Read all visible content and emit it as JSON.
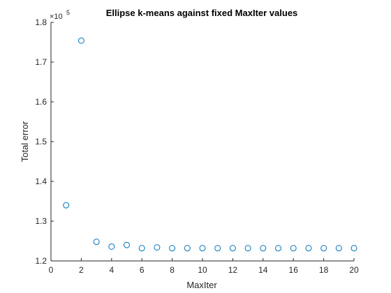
{
  "chart_data": {
    "type": "scatter",
    "title": "Ellipse k-means against fixed MaxIter values",
    "xlabel": "MaxIter",
    "ylabel": "Total error",
    "y_multiplier_label": "×10",
    "y_multiplier_exponent": "5",
    "xlim": [
      0,
      20
    ],
    "ylim": [
      1.2,
      1.8
    ],
    "x_ticks": [
      0,
      2,
      4,
      6,
      8,
      10,
      12,
      14,
      16,
      18,
      20
    ],
    "x_tick_labels": [
      "0",
      "2",
      "4",
      "6",
      "8",
      "10",
      "12",
      "14",
      "16",
      "18",
      "20"
    ],
    "y_ticks": [
      1.2,
      1.3,
      1.4,
      1.5,
      1.6,
      1.7,
      1.8
    ],
    "y_tick_labels": [
      "1.2",
      "1.3",
      "1.4",
      "1.5",
      "1.6",
      "1.7",
      "1.8"
    ],
    "grid": false,
    "marker": "circle",
    "color": "#0072BD",
    "series": [
      {
        "x": [
          1,
          2,
          3,
          4,
          5,
          6,
          7,
          8,
          9,
          10,
          11,
          12,
          13,
          14,
          15,
          16,
          17,
          18,
          19,
          20
        ],
        "y": [
          1.34,
          1.754,
          1.248,
          1.236,
          1.24,
          1.232,
          1.234,
          1.232,
          1.232,
          1.232,
          1.232,
          1.232,
          1.232,
          1.232,
          1.232,
          1.232,
          1.232,
          1.232,
          1.232,
          1.232
        ]
      }
    ]
  }
}
